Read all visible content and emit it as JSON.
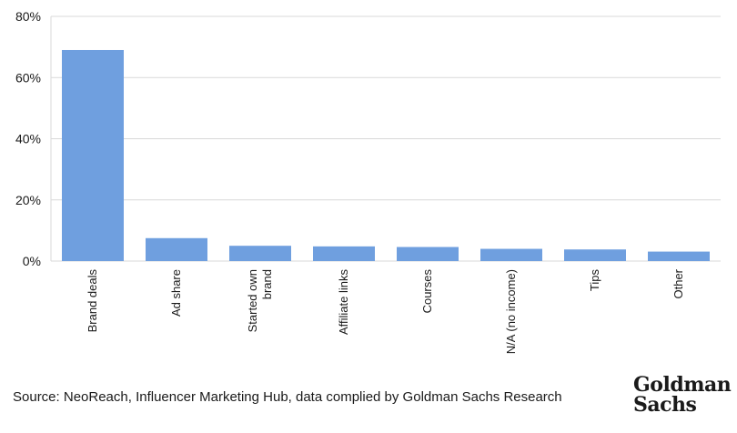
{
  "chart_data": {
    "type": "bar",
    "categories": [
      "Brand deals",
      "Ad share",
      "Started own brand",
      "Affiliate links",
      "Courses",
      "N/A (no income)",
      "Tips",
      "Other"
    ],
    "category_lines": [
      [
        "Brand deals"
      ],
      [
        "Ad share"
      ],
      [
        "Started own",
        "brand"
      ],
      [
        "Affiliate links"
      ],
      [
        "Courses"
      ],
      [
        "N/A (no income)"
      ],
      [
        "Tips"
      ],
      [
        "Other"
      ]
    ],
    "values": [
      69,
      7.5,
      5,
      4.8,
      4.6,
      4,
      3.8,
      3.1
    ],
    "ylim": [
      0,
      80
    ],
    "yticks": [
      "0%",
      "20%",
      "40%",
      "60%",
      "80%"
    ],
    "ytick_values": [
      0,
      20,
      40,
      60,
      80
    ],
    "grid": true,
    "bar_color": "#6f9fdf",
    "grid_color": "#d9d9d9"
  },
  "footer": {
    "source": "Source: NeoReach, Influencer Marketing Hub, data complied by Goldman Sachs Research",
    "logo_line1": "Goldman",
    "logo_line2": "Sachs"
  }
}
